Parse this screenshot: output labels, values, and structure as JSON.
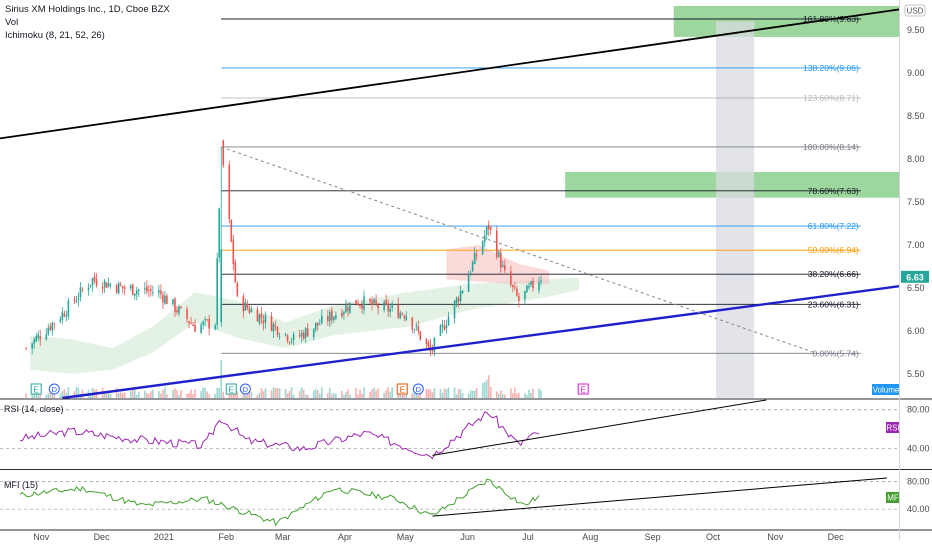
{
  "header": {
    "title": "Sirius XM Holdings Inc., 1D, Cboe BZX",
    "vol_label": "Vol",
    "ichimoku_label": "Ichimoku (8, 21, 52, 26)"
  },
  "currency": "USD",
  "volume_label": "Volume",
  "rsi_label": "RSI (14, close)",
  "rsi_tag": "RSI",
  "mfi_label": "MFI (15)",
  "mfi_tag": "MF",
  "earnings_marker": "E",
  "dividend_marker": "D",
  "colors": {
    "up": "#26a69a",
    "down": "#ef5350",
    "fib_gray": "#787b86",
    "fib_blue": "#2196f3",
    "fib_orange": "#ff9800",
    "trend_blue": "#1f1fcc",
    "zone_green": "#7cc97c",
    "rsi_line": "#9c27b0",
    "mfi_line": "#43a030",
    "price_tag": "#26a69a"
  },
  "chart_data": [
    {
      "type": "candlestick",
      "title": "Sirius XM Holdings Inc., 1D, Cboe BZX",
      "ylim": [
        5.22,
        9.78
      ],
      "y_ticks": [
        "9.50",
        "9.00",
        "8.50",
        "8.00",
        "7.50",
        "7.00",
        "6.50",
        "6.00",
        "5.50"
      ],
      "x_ticks": [
        "Nov",
        "Dec",
        "2021",
        "Feb",
        "Mar",
        "Apr",
        "May",
        "Jun",
        "Jul",
        "Aug",
        "Sep",
        "Oct",
        "Nov",
        "Dec"
      ],
      "last_price": "6.63",
      "key_points": [
        {
          "date": "2020-10-23",
          "close": 5.8
        },
        {
          "date": "2020-11-10",
          "close": 6.2
        },
        {
          "date": "2020-11-25",
          "close": 6.6
        },
        {
          "date": "2020-12-10",
          "close": 6.5
        },
        {
          "date": "2020-12-28",
          "close": 6.45
        },
        {
          "date": "2021-01-15",
          "close": 6.05
        },
        {
          "date": "2021-01-25",
          "close": 6.1
        },
        {
          "date": "2021-01-28",
          "close": 8.14
        },
        {
          "date": "2021-02-05",
          "close": 6.35
        },
        {
          "date": "2021-03-05",
          "close": 5.9
        },
        {
          "date": "2021-04-05",
          "close": 6.35
        },
        {
          "date": "2021-04-30",
          "close": 6.2
        },
        {
          "date": "2021-05-12",
          "close": 5.75
        },
        {
          "date": "2021-05-28",
          "close": 6.5
        },
        {
          "date": "2021-06-10",
          "close": 7.22
        },
        {
          "date": "2021-06-18",
          "close": 6.65
        },
        {
          "date": "2021-06-25",
          "close": 6.35
        },
        {
          "date": "2021-07-06",
          "close": 6.63
        }
      ],
      "fibonacci": [
        {
          "level": "161.80%",
          "price": 9.63,
          "label": "161.80%(9.63)"
        },
        {
          "level": "138.20%",
          "price": 9.06,
          "label": "138.20%(9.06)"
        },
        {
          "level": "123.60%",
          "price": 8.71,
          "label": "123.60%(8.71)"
        },
        {
          "level": "100.00%",
          "price": 8.14,
          "label": "100.00%(8.14)"
        },
        {
          "level": "78.60%",
          "price": 7.63,
          "label": "78.60%(7.63)"
        },
        {
          "level": "61.80%",
          "price": 7.22,
          "label": "61.80%(7.22)"
        },
        {
          "level": "50.00%",
          "price": 6.94,
          "label": "50.00%(6.94)"
        },
        {
          "level": "38.20%",
          "price": 6.66,
          "label": "38.20%(6.66)"
        },
        {
          "level": "23.60%",
          "price": 6.31,
          "label": "23.60%(6.31)"
        },
        {
          "level": "0.00%",
          "price": 5.74,
          "label": "0.00%(5.74)"
        }
      ],
      "trendlines": [
        {
          "name": "upper-black",
          "from": {
            "date": "2020-10-10",
            "price": 8.24
          },
          "to": {
            "date": "2021-12-31",
            "price": 9.74
          }
        },
        {
          "name": "support-blue",
          "from": {
            "date": "2020-11-10",
            "price": 5.22
          },
          "to": {
            "date": "2021-12-31",
            "price": 6.52
          }
        },
        {
          "name": "resistance-dashed",
          "from": {
            "date": "2021-01-28",
            "price": 8.14
          },
          "to": {
            "date": "2021-11-20",
            "price": 5.74
          }
        }
      ],
      "zones": [
        {
          "name": "target-zone-upper",
          "date_from": "2021-09-10",
          "date_to": "2021-12-31",
          "price_from": 9.42,
          "price_to": 9.78
        },
        {
          "name": "target-zone-lower",
          "date_from": "2021-07-18",
          "date_to": "2021-12-31",
          "price_from": 7.55,
          "price_to": 7.85
        }
      ],
      "time_window": {
        "date_from": "2021-10-01",
        "date_to": "2021-10-20"
      },
      "event_markers": [
        {
          "date": "2020-10-28",
          "kind": "E"
        },
        {
          "date": "2020-11-06",
          "kind": "D"
        },
        {
          "date": "2021-02-02",
          "kind": "E"
        },
        {
          "date": "2021-02-09",
          "kind": "D"
        },
        {
          "date": "2021-04-28",
          "kind": "E"
        },
        {
          "date": "2021-05-06",
          "kind": "D"
        },
        {
          "date": "2021-07-27",
          "kind": "E"
        }
      ]
    },
    {
      "type": "line",
      "name": "RSI (14, close)",
      "ylim": [
        20,
        90
      ],
      "y_ticks": [
        "80.00",
        "40.00"
      ],
      "points": [
        {
          "date": "2020-10-20",
          "value": 50
        },
        {
          "date": "2020-11-15",
          "value": 58
        },
        {
          "date": "2020-12-15",
          "value": 50
        },
        {
          "date": "2021-01-20",
          "value": 43
        },
        {
          "date": "2021-01-28",
          "value": 72
        },
        {
          "date": "2021-02-10",
          "value": 48
        },
        {
          "date": "2021-03-10",
          "value": 40
        },
        {
          "date": "2021-04-10",
          "value": 56
        },
        {
          "date": "2021-05-13",
          "value": 33
        },
        {
          "date": "2021-06-10",
          "value": 78
        },
        {
          "date": "2021-06-25",
          "value": 44
        },
        {
          "date": "2021-07-06",
          "value": 58
        }
      ],
      "trendline": {
        "from": {
          "date": "2021-05-13",
          "value": 33
        },
        "to": {
          "date": "2021-10-26",
          "value": 90
        }
      }
    },
    {
      "type": "line",
      "name": "MFI (15)",
      "ylim": [
        10,
        95
      ],
      "y_ticks": [
        "80.00",
        "40.00"
      ],
      "points": [
        {
          "date": "2020-10-20",
          "value": 60
        },
        {
          "date": "2020-11-20",
          "value": 70
        },
        {
          "date": "2020-12-20",
          "value": 45
        },
        {
          "date": "2021-01-20",
          "value": 55
        },
        {
          "date": "2021-02-25",
          "value": 20
        },
        {
          "date": "2021-03-25",
          "value": 70
        },
        {
          "date": "2021-04-25",
          "value": 55
        },
        {
          "date": "2021-05-13",
          "value": 30
        },
        {
          "date": "2021-06-10",
          "value": 82
        },
        {
          "date": "2021-06-28",
          "value": 45
        },
        {
          "date": "2021-07-06",
          "value": 60
        }
      ],
      "trendline": {
        "from": {
          "date": "2021-05-13",
          "value": 30
        },
        "to": {
          "date": "2021-12-25",
          "value": 85
        }
      }
    }
  ]
}
